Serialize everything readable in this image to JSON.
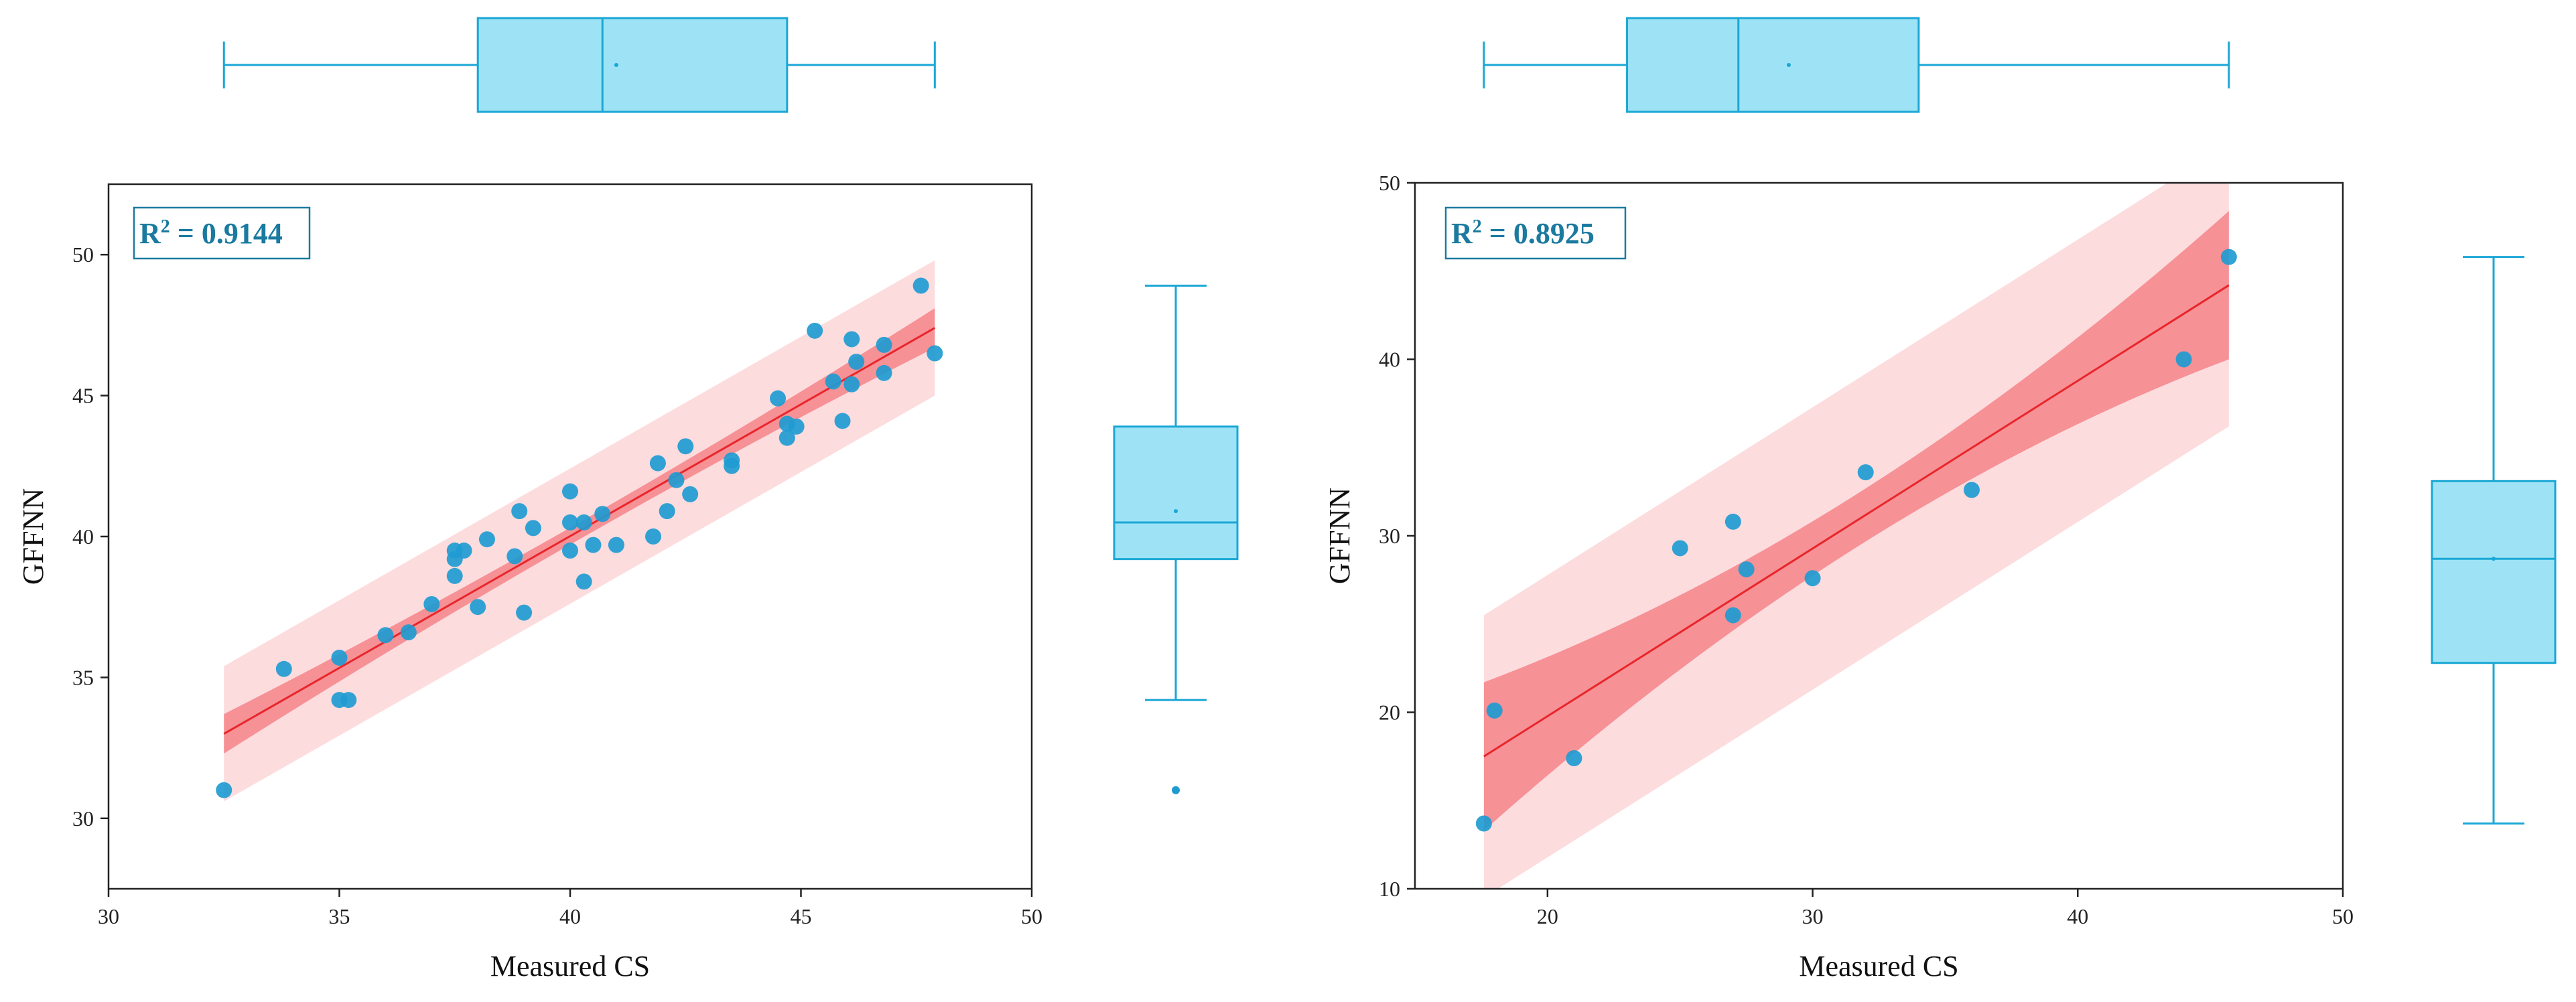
{
  "colors": {
    "point": "#1f9bd1",
    "fit_line": "#e8262b",
    "confidence_band": "#f4848a",
    "prediction_band": "#fddcde",
    "box_fill": "#9de3f5",
    "box_stroke": "#1aa7d6",
    "r2_stroke": "#1a7aa0"
  },
  "chart_data": [
    {
      "type": "scatter",
      "title": "",
      "xlabel": "Measured CS",
      "ylabel": "GFFNN",
      "xlim": [
        30,
        50
      ],
      "ylim": [
        27.5,
        52.5
      ],
      "xticks": [
        30,
        35,
        40,
        45,
        50
      ],
      "yticks": [
        30,
        35,
        40,
        45,
        50
      ],
      "r2_label": "R",
      "r2_exp": "2",
      "r2_value": " = 0.9144",
      "fit": {
        "x_start": 32.5,
        "x_end": 47.9,
        "y_start": 33.0,
        "y_end": 47.4
      },
      "confidence_band": {
        "half_width_ends": 0.7,
        "half_width_center": 0.3
      },
      "prediction_band": {
        "half_width": 2.4
      },
      "x": [
        32.5,
        33.8,
        35.0,
        35.0,
        35.2,
        36.0,
        36.5,
        37.0,
        37.5,
        37.5,
        37.5,
        37.7,
        38.0,
        38.2,
        38.8,
        38.9,
        39.0,
        39.2,
        40.0,
        40.0,
        40.0,
        40.3,
        40.3,
        40.5,
        40.7,
        41.0,
        41.8,
        41.9,
        42.1,
        42.3,
        42.5,
        42.6,
        43.5,
        43.5,
        44.5,
        44.7,
        44.7,
        44.9,
        45.3,
        45.7,
        45.9,
        46.1,
        46.1,
        46.2,
        46.8,
        46.8,
        47.6,
        47.9
      ],
      "y": [
        31.0,
        35.3,
        35.7,
        34.2,
        34.2,
        36.5,
        36.6,
        37.6,
        38.6,
        39.2,
        39.5,
        39.5,
        37.5,
        39.9,
        39.3,
        40.9,
        37.3,
        40.3,
        41.6,
        40.5,
        39.5,
        40.5,
        38.4,
        39.7,
        40.8,
        39.7,
        40.0,
        42.6,
        40.9,
        42.0,
        43.2,
        41.5,
        42.7,
        42.5,
        44.9,
        44.0,
        43.5,
        43.9,
        47.3,
        45.5,
        44.1,
        47.0,
        45.4,
        46.2,
        46.8,
        45.8,
        48.9,
        46.5
      ],
      "box_top": {
        "whisker_low": 32.5,
        "q1": 38.0,
        "median": 40.7,
        "mean": 41.0,
        "q3": 44.7,
        "whisker_high": 47.9
      },
      "box_right": {
        "whisker_low": 34.2,
        "q1": 39.2,
        "median": 40.5,
        "mean": 40.9,
        "q3": 43.9,
        "whisker_high": 48.9,
        "outliers": [
          31.0
        ]
      }
    },
    {
      "type": "scatter",
      "title": "",
      "xlabel": "Measured CS",
      "ylabel": "GFFNN",
      "xlim": [
        15,
        50
      ],
      "ylim": [
        10,
        50
      ],
      "xticks": [
        20,
        30,
        40,
        50
      ],
      "yticks": [
        10,
        20,
        30,
        40,
        50
      ],
      "r2_label": "R",
      "r2_exp": "2",
      "r2_value": " = 0.8925",
      "fit": {
        "x_start": 17.6,
        "x_end": 45.7,
        "y_start": 17.5,
        "y_end": 44.2
      },
      "confidence_band": {
        "half_width_ends": 4.2,
        "half_width_center": 1.5
      },
      "prediction_band": {
        "half_width": 8.0
      },
      "x": [
        17.6,
        18.0,
        21.0,
        25.0,
        27.0,
        27.0,
        27.5,
        30.0,
        32.0,
        36.0,
        44.0,
        45.7
      ],
      "y": [
        13.7,
        20.1,
        17.4,
        29.3,
        30.8,
        25.5,
        28.1,
        27.6,
        33.6,
        32.6,
        40.0,
        45.8
      ],
      "box_top": {
        "whisker_low": 17.6,
        "q1": 23.0,
        "median": 27.2,
        "mean": 29.1,
        "q3": 34.0,
        "whisker_high": 45.7
      },
      "box_right": {
        "whisker_low": 13.7,
        "q1": 22.8,
        "median": 28.7,
        "mean": 28.7,
        "q3": 33.1,
        "whisker_high": 45.8,
        "outliers": []
      }
    }
  ]
}
